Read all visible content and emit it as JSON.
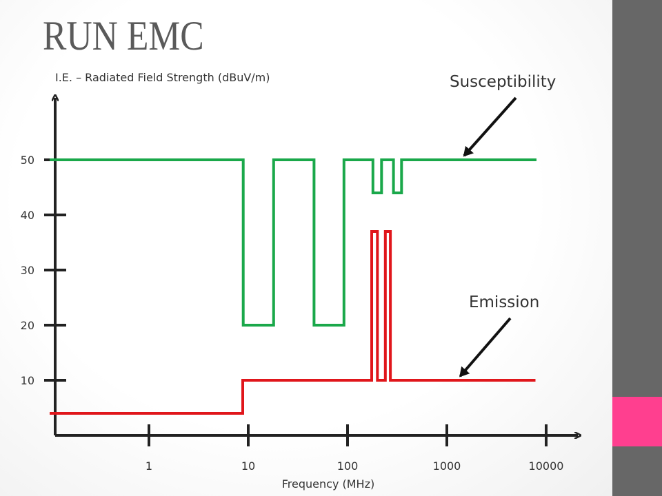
{
  "slide": {
    "title": "RUN EMC",
    "sidebar_color": "#676767",
    "accent_color": "#ff3f8f"
  },
  "chart_data": {
    "type": "line",
    "title": "RUN EMC",
    "ylabel": "I.E. – Radiated Field Strength (dBuV/m)",
    "xlabel": "Frequency (MHz)",
    "x_scale": "log",
    "xlim": [
      0.1,
      10000
    ],
    "ylim": [
      0,
      60
    ],
    "y_ticks": [
      10,
      20,
      30,
      40,
      50
    ],
    "y_tick_labels": [
      "10",
      "20",
      "30",
      "40",
      "50"
    ],
    "x_ticks": [
      1,
      10,
      100,
      1000,
      10000
    ],
    "x_tick_labels": [
      "1",
      "10",
      "100",
      "1000",
      "10000"
    ],
    "grid": false,
    "series": [
      {
        "name": "Susceptibility",
        "color": "#1aa84a",
        "points": [
          [
            0.1,
            50
          ],
          [
            8.9,
            50
          ],
          [
            8.9,
            20
          ],
          [
            18,
            20
          ],
          [
            18,
            50
          ],
          [
            46,
            50
          ],
          [
            46,
            20
          ],
          [
            92,
            20
          ],
          [
            92,
            50
          ],
          [
            180,
            50
          ],
          [
            180,
            44
          ],
          [
            220,
            44
          ],
          [
            220,
            50
          ],
          [
            290,
            50
          ],
          [
            290,
            44
          ],
          [
            350,
            44
          ],
          [
            350,
            50
          ],
          [
            8000,
            50
          ]
        ]
      },
      {
        "name": "Emission",
        "color": "#e0161b",
        "points": [
          [
            0.1,
            4
          ],
          [
            8.8,
            4
          ],
          [
            8.8,
            10
          ],
          [
            175,
            10
          ],
          [
            175,
            37
          ],
          [
            200,
            37
          ],
          [
            200,
            10
          ],
          [
            240,
            10
          ],
          [
            240,
            37
          ],
          [
            270,
            37
          ],
          [
            270,
            10
          ],
          [
            7800,
            10
          ]
        ]
      }
    ],
    "annotations": [
      {
        "text": "Susceptibility",
        "target_x": 1400,
        "target_y": 50
      },
      {
        "text": "Emission",
        "target_x": 1200,
        "target_y": 10
      }
    ]
  }
}
